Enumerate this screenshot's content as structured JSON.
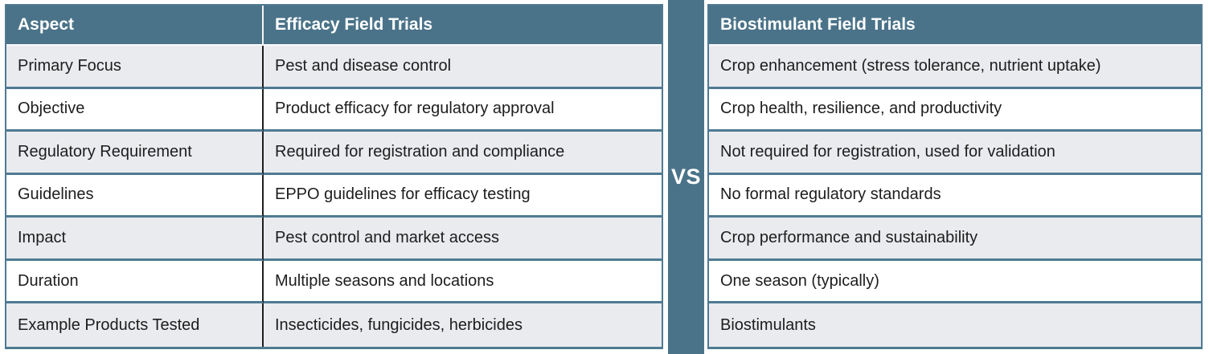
{
  "title": "Efficacy Field Trials vs Biostimulant Field Trials comparison table",
  "colors": {
    "header_bg": "#4a7389",
    "header_text": "#ffffff",
    "row_alt_bg": "#e9ebee",
    "row_bg": "#ffffff",
    "separator_border": "#4f7a93",
    "column_divider": "#1f1f1f",
    "body_text": "#1d1d1d"
  },
  "divider": {
    "label": "VS"
  },
  "chart_data": {
    "type": "table",
    "title": "",
    "columns": [
      "Aspect",
      "Efficacy Field Trials",
      "Biostimulant Field Trials"
    ],
    "divider_label": "VS",
    "rows": [
      [
        "Primary Focus",
        "Pest and disease control",
        "Crop enhancement (stress tolerance, nutrient uptake)"
      ],
      [
        "Objective",
        "Product efficacy for regulatory approval",
        "Crop health, resilience, and productivity"
      ],
      [
        "Regulatory Requirement",
        "Required for registration and compliance",
        "Not required for registration, used for validation"
      ],
      [
        "Guidelines",
        "EPPO guidelines for efficacy testing",
        "No formal regulatory standards"
      ],
      [
        "Impact",
        "Pest control and market access",
        "Crop performance and sustainability"
      ],
      [
        "Duration",
        "Multiple seasons and locations",
        "One season (typically)"
      ],
      [
        "Example Products Tested",
        "Insecticides, fungicides, herbicides",
        "Biostimulants"
      ]
    ]
  }
}
